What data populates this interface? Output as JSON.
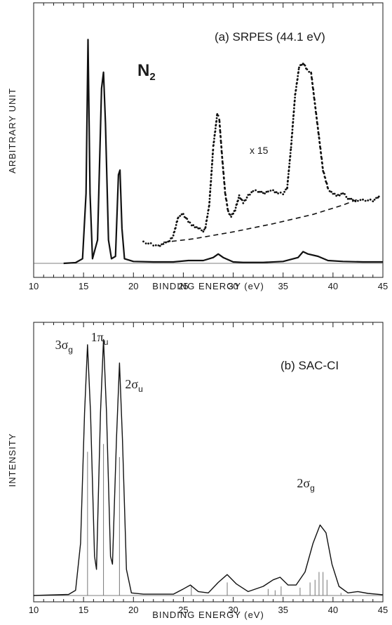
{
  "figure": {
    "molecule": "N",
    "molecule_subscript": "2"
  },
  "chart_data": [
    {
      "type": "line",
      "panel": "a",
      "title": "(a) SRPES (44.1 eV)",
      "xlabel": "BINDING ENERGY (eV)",
      "ylabel": "ARBITRARY UNIT",
      "xlim": [
        10,
        45
      ],
      "xticks": [
        "10",
        "15",
        "20",
        "25",
        "30",
        "35",
        "40",
        "45"
      ],
      "grid": false,
      "scale_annotation": "x 15",
      "series": [
        {
          "style": "solid",
          "points": [
            [
              13.0,
              0.0
            ],
            [
              14.2,
              0.003
            ],
            [
              14.9,
              0.02
            ],
            [
              15.25,
              0.3
            ],
            [
              15.45,
              0.96
            ],
            [
              15.65,
              0.3
            ],
            [
              15.9,
              0.02
            ],
            [
              16.4,
              0.1
            ],
            [
              16.8,
              0.75
            ],
            [
              17.0,
              0.82
            ],
            [
              17.2,
              0.6
            ],
            [
              17.5,
              0.1
            ],
            [
              17.8,
              0.02
            ],
            [
              18.2,
              0.03
            ],
            [
              18.5,
              0.38
            ],
            [
              18.65,
              0.4
            ],
            [
              18.85,
              0.15
            ],
            [
              19.1,
              0.02
            ],
            [
              20,
              0.008
            ],
            [
              22,
              0.006
            ],
            [
              24,
              0.006
            ],
            [
              25.5,
              0.012
            ],
            [
              27,
              0.012
            ],
            [
              28,
              0.025
            ],
            [
              28.5,
              0.04
            ],
            [
              29,
              0.025
            ],
            [
              30,
              0.006
            ],
            [
              31,
              0.004
            ],
            [
              33,
              0.004
            ],
            [
              35,
              0.008
            ],
            [
              36.5,
              0.025
            ],
            [
              37,
              0.05
            ],
            [
              37.5,
              0.04
            ],
            [
              38.5,
              0.03
            ],
            [
              39.5,
              0.012
            ],
            [
              41,
              0.008
            ],
            [
              43,
              0.006
            ],
            [
              45,
              0.006
            ]
          ]
        },
        {
          "style": "dots",
          "points": [
            [
              21,
              0.09
            ],
            [
              21.5,
              0.085
            ],
            [
              22,
              0.08
            ],
            [
              22.5,
              0.075
            ],
            [
              23,
              0.085
            ],
            [
              23.5,
              0.09
            ],
            [
              24,
              0.12
            ],
            [
              24.5,
              0.2
            ],
            [
              25,
              0.21
            ],
            [
              25.5,
              0.18
            ],
            [
              26,
              0.16
            ],
            [
              26.5,
              0.15
            ],
            [
              27,
              0.14
            ],
            [
              27.2,
              0.15
            ],
            [
              27.6,
              0.25
            ],
            [
              28,
              0.5
            ],
            [
              28.4,
              0.64
            ],
            [
              28.6,
              0.62
            ],
            [
              28.9,
              0.45
            ],
            [
              29.2,
              0.3
            ],
            [
              29.5,
              0.22
            ],
            [
              29.8,
              0.2
            ],
            [
              30.2,
              0.23
            ],
            [
              30.6,
              0.29
            ],
            [
              31,
              0.26
            ],
            [
              31.5,
              0.29
            ],
            [
              32,
              0.31
            ],
            [
              32.5,
              0.31
            ],
            [
              33,
              0.3
            ],
            [
              33.5,
              0.31
            ],
            [
              34,
              0.31
            ],
            [
              34.5,
              0.3
            ],
            [
              35,
              0.3
            ],
            [
              35.4,
              0.32
            ],
            [
              35.8,
              0.5
            ],
            [
              36.2,
              0.72
            ],
            [
              36.6,
              0.84
            ],
            [
              37,
              0.86
            ],
            [
              37.4,
              0.83
            ],
            [
              37.8,
              0.82
            ],
            [
              38.2,
              0.68
            ],
            [
              38.6,
              0.54
            ],
            [
              39,
              0.4
            ],
            [
              39.5,
              0.32
            ],
            [
              40,
              0.3
            ],
            [
              40.5,
              0.29
            ],
            [
              41,
              0.3
            ],
            [
              41.5,
              0.28
            ],
            [
              42,
              0.27
            ],
            [
              42.5,
              0.27
            ],
            [
              43,
              0.27
            ],
            [
              43.5,
              0.27
            ],
            [
              44,
              0.27
            ],
            [
              44.5,
              0.28
            ],
            [
              44.7,
              0.3
            ]
          ]
        },
        {
          "style": "dashed",
          "points": [
            [
              23,
              0.09
            ],
            [
              26,
              0.105
            ],
            [
              30,
              0.135
            ],
            [
              34,
              0.17
            ],
            [
              38,
              0.21
            ],
            [
              41,
              0.25
            ],
            [
              42.5,
              0.275
            ]
          ]
        }
      ]
    },
    {
      "type": "line",
      "panel": "b",
      "title": "(b) SAC-CI",
      "xlabel": "BINDING ENERGY (eV)",
      "ylabel": "INTENSITY",
      "xlim": [
        10,
        45
      ],
      "xticks": [
        "10",
        "15",
        "20",
        "25",
        "30",
        "35",
        "40",
        "45"
      ],
      "grid": false,
      "peak_labels": [
        {
          "x": 15.1,
          "base": "3σ",
          "sub": "g"
        },
        {
          "x": 17.0,
          "base": "1π",
          "sub": "u"
        },
        {
          "x": 18.6,
          "base": "2σ",
          "sub": "u"
        },
        {
          "x": 38.7,
          "base": "2σ",
          "sub": "g"
        }
      ],
      "series": [
        {
          "style": "solid",
          "points": [
            [
              10,
              0.0
            ],
            [
              13.5,
              0.004
            ],
            [
              14.2,
              0.02
            ],
            [
              14.7,
              0.2
            ],
            [
              15.1,
              0.7
            ],
            [
              15.4,
              0.96
            ],
            [
              15.7,
              0.7
            ],
            [
              16.1,
              0.15
            ],
            [
              16.3,
              0.1
            ],
            [
              16.7,
              0.7
            ],
            [
              17.0,
              0.98
            ],
            [
              17.3,
              0.7
            ],
            [
              17.7,
              0.15
            ],
            [
              17.9,
              0.12
            ],
            [
              18.3,
              0.6
            ],
            [
              18.6,
              0.89
            ],
            [
              18.9,
              0.6
            ],
            [
              19.3,
              0.1
            ],
            [
              19.8,
              0.01
            ],
            [
              21,
              0.005
            ],
            [
              24,
              0.005
            ],
            [
              25,
              0.025
            ],
            [
              25.7,
              0.04
            ],
            [
              26.5,
              0.015
            ],
            [
              27.5,
              0.01
            ],
            [
              28.5,
              0.05
            ],
            [
              29.4,
              0.08
            ],
            [
              30.3,
              0.045
            ],
            [
              31.5,
              0.015
            ],
            [
              33,
              0.035
            ],
            [
              34,
              0.06
            ],
            [
              34.7,
              0.07
            ],
            [
              35.5,
              0.04
            ],
            [
              36.3,
              0.04
            ],
            [
              37.2,
              0.09
            ],
            [
              38,
              0.2
            ],
            [
              38.7,
              0.27
            ],
            [
              39.3,
              0.24
            ],
            [
              39.9,
              0.12
            ],
            [
              40.6,
              0.035
            ],
            [
              41.5,
              0.01
            ],
            [
              42.5,
              0.015
            ],
            [
              43.5,
              0.008
            ],
            [
              45,
              0.003
            ]
          ]
        }
      ],
      "sticks": [
        [
          15.4,
          0.55
        ],
        [
          17.0,
          0.58
        ],
        [
          18.6,
          0.53
        ],
        [
          25.8,
          0.04
        ],
        [
          29.4,
          0.05
        ],
        [
          33.5,
          0.025
        ],
        [
          34.2,
          0.02
        ],
        [
          34.8,
          0.035
        ],
        [
          36.7,
          0.03
        ],
        [
          37.7,
          0.05
        ],
        [
          38.2,
          0.06
        ],
        [
          38.6,
          0.09
        ],
        [
          39.0,
          0.09
        ],
        [
          39.4,
          0.06
        ],
        [
          40.8,
          0.01
        ]
      ]
    }
  ]
}
